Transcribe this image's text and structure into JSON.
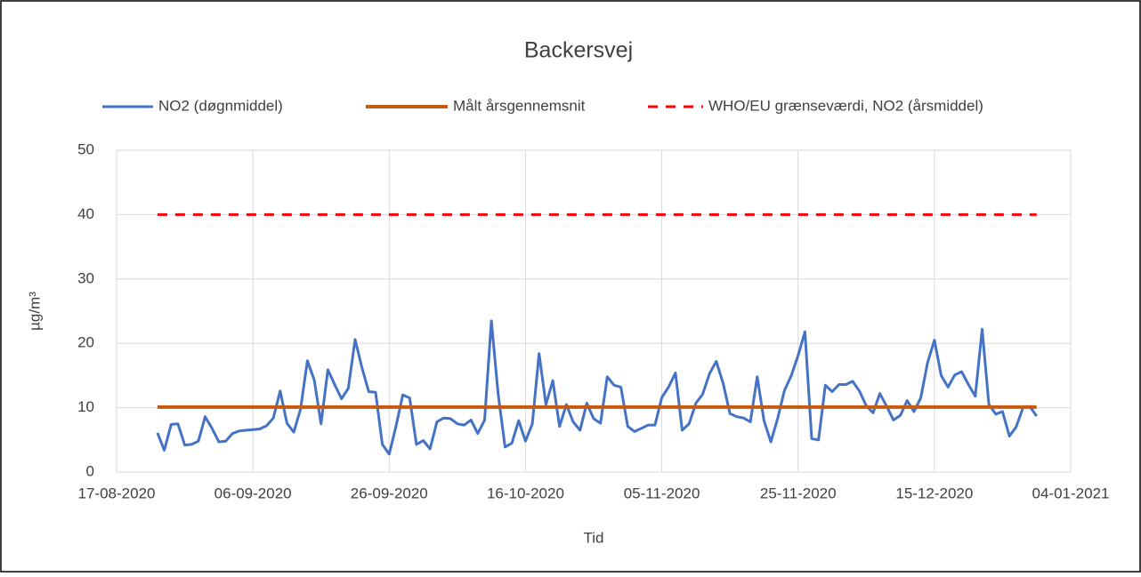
{
  "chart_data": {
    "type": "line",
    "title": "Backersvej",
    "x_label": "Tid",
    "y_label": "µg/m³",
    "xlim": [
      "17-08-2020",
      "04-01-2021"
    ],
    "xticks": [
      "17-08-2020",
      "06-09-2020",
      "26-09-2020",
      "16-10-2020",
      "05-11-2020",
      "25-11-2020",
      "15-12-2020",
      "04-01-2021"
    ],
    "ylim": [
      0,
      50
    ],
    "yticks": [
      0,
      10,
      20,
      30,
      40,
      50
    ],
    "grid": true,
    "legend": "top",
    "series": [
      {
        "name": "NO2 (døgnmiddel)",
        "color": "#4472c4",
        "style": "solid",
        "x": [
          "23-08-2020",
          "24-08-2020",
          "25-08-2020",
          "26-08-2020",
          "27-08-2020",
          "28-08-2020",
          "29-08-2020",
          "30-08-2020",
          "31-08-2020",
          "01-09-2020",
          "02-09-2020",
          "03-09-2020",
          "04-09-2020",
          "05-09-2020",
          "06-09-2020",
          "07-09-2020",
          "08-09-2020",
          "09-09-2020",
          "10-09-2020",
          "11-09-2020",
          "12-09-2020",
          "13-09-2020",
          "14-09-2020",
          "15-09-2020",
          "16-09-2020",
          "17-09-2020",
          "18-09-2020",
          "19-09-2020",
          "20-09-2020",
          "21-09-2020",
          "22-09-2020",
          "23-09-2020",
          "24-09-2020",
          "25-09-2020",
          "26-09-2020",
          "27-09-2020",
          "28-09-2020",
          "29-09-2020",
          "30-09-2020",
          "01-10-2020",
          "02-10-2020",
          "03-10-2020",
          "04-10-2020",
          "05-10-2020",
          "06-10-2020",
          "07-10-2020",
          "08-10-2020",
          "09-10-2020",
          "10-10-2020",
          "11-10-2020",
          "12-10-2020",
          "13-10-2020",
          "14-10-2020",
          "15-10-2020",
          "16-10-2020",
          "17-10-2020",
          "18-10-2020",
          "19-10-2020",
          "20-10-2020",
          "21-10-2020",
          "22-10-2020",
          "23-10-2020",
          "24-10-2020",
          "25-10-2020",
          "26-10-2020",
          "27-10-2020",
          "28-10-2020",
          "29-10-2020",
          "30-10-2020",
          "31-10-2020",
          "01-11-2020",
          "02-11-2020",
          "03-11-2020",
          "04-11-2020",
          "05-11-2020",
          "06-11-2020",
          "07-11-2020",
          "08-11-2020",
          "09-11-2020",
          "10-11-2020",
          "11-11-2020",
          "12-11-2020",
          "13-11-2020",
          "14-11-2020",
          "15-11-2020",
          "16-11-2020",
          "17-11-2020",
          "18-11-2020",
          "19-11-2020",
          "20-11-2020",
          "21-11-2020",
          "22-11-2020",
          "23-11-2020",
          "24-11-2020",
          "25-11-2020",
          "26-11-2020",
          "27-11-2020",
          "28-11-2020",
          "29-11-2020",
          "30-11-2020",
          "01-12-2020",
          "02-12-2020",
          "03-12-2020",
          "04-12-2020",
          "05-12-2020",
          "06-12-2020",
          "07-12-2020",
          "08-12-2020",
          "09-12-2020",
          "10-12-2020",
          "11-12-2020",
          "12-12-2020",
          "13-12-2020",
          "14-12-2020",
          "15-12-2020",
          "16-12-2020",
          "17-12-2020",
          "18-12-2020",
          "19-12-2020",
          "20-12-2020",
          "21-12-2020",
          "22-12-2020",
          "23-12-2020",
          "24-12-2020",
          "25-12-2020",
          "26-12-2020",
          "27-12-2020",
          "28-12-2020",
          "29-12-2020",
          "30-12-2020"
        ],
        "values": [
          6.1,
          3.4,
          7.4,
          7.5,
          4.2,
          4.3,
          4.8,
          8.6,
          6.8,
          4.7,
          4.8,
          6.0,
          6.4,
          6.5,
          6.6,
          6.7,
          7.2,
          8.4,
          12.6,
          7.6,
          6.2,
          9.8,
          17.3,
          14.3,
          7.5,
          15.9,
          13.6,
          11.4,
          13.0,
          20.6,
          16.2,
          12.5,
          12.4,
          4.3,
          2.8,
          7.1,
          12.0,
          11.5,
          4.3,
          4.9,
          3.6,
          7.8,
          8.4,
          8.3,
          7.5,
          7.3,
          8.1,
          6.0,
          8.1,
          23.5,
          12.0,
          3.9,
          4.5,
          8.0,
          4.8,
          7.5,
          18.4,
          10.5,
          14.2,
          7.1,
          10.5,
          7.8,
          6.5,
          10.7,
          8.3,
          7.6,
          14.8,
          13.5,
          13.2,
          7.1,
          6.3,
          6.8,
          7.3,
          7.3,
          11.6,
          13.2,
          15.4,
          6.5,
          7.5,
          10.7,
          12.1,
          15.3,
          17.2,
          13.8,
          9.1,
          8.6,
          8.4,
          7.8,
          14.8,
          8.0,
          4.7,
          8.3,
          12.7,
          15.0,
          18.1,
          21.8,
          5.2,
          5.0,
          13.5,
          12.5,
          13.6,
          13.6,
          14.1,
          12.6,
          10.3,
          9.2,
          12.2,
          10.2,
          8.1,
          8.8,
          11.1,
          9.4,
          11.5,
          17.0,
          20.5,
          15.0,
          13.2,
          15.1,
          15.6,
          13.6,
          11.8,
          22.2,
          10.5,
          9.0,
          9.4,
          5.6,
          7.0,
          10.0,
          10.2,
          8.7
        ]
      },
      {
        "name": "Målt årsgennemsnit",
        "color": "#c55a11",
        "style": "solid",
        "x": [
          "23-08-2020",
          "30-12-2020"
        ],
        "values": [
          10.1,
          10.1
        ]
      },
      {
        "name": "WHO/EU grænseværdi, NO2 (årsmiddel)",
        "color": "#ff0000",
        "style": "dashed",
        "x": [
          "23-08-2020",
          "30-12-2020"
        ],
        "values": [
          40,
          40
        ]
      }
    ]
  }
}
